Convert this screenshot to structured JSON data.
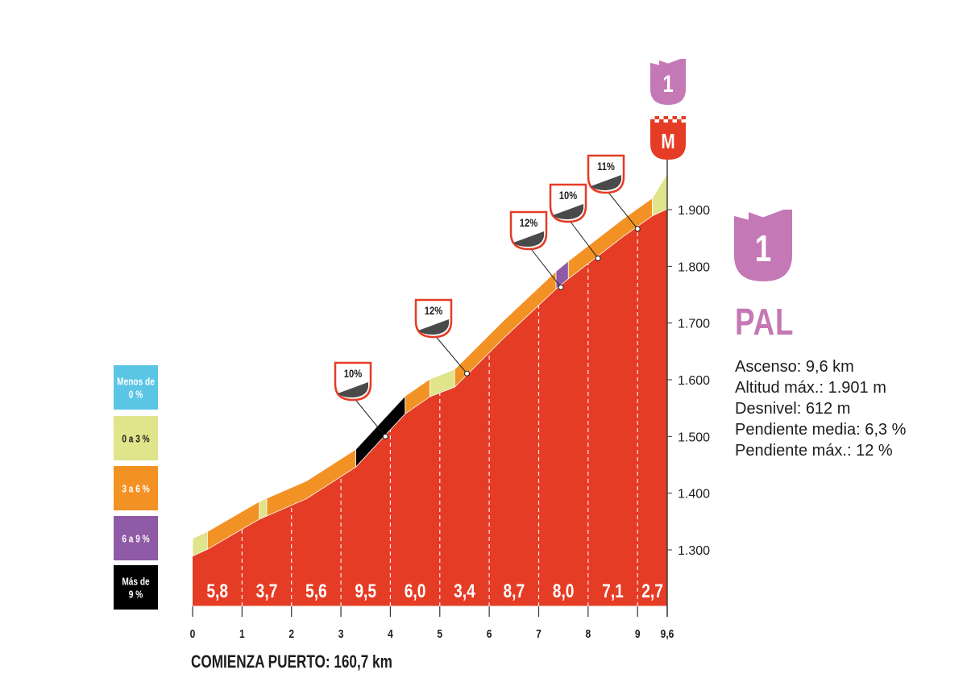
{
  "chart_data": {
    "type": "area",
    "title": "PAL",
    "category_label": "1",
    "summit_marker": "M",
    "start_note": "COMIENZA PUERTO: 160,7 km",
    "x_ticks": [
      "0",
      "1",
      "2",
      "3",
      "4",
      "5",
      "6",
      "7",
      "8",
      "9",
      "9,6"
    ],
    "x_range": [
      0,
      9.6
    ],
    "y_ticks": [
      "1.300",
      "1.400",
      "1.500",
      "1.600",
      "1.700",
      "1.800",
      "1.900"
    ],
    "y_range": [
      1230,
      1930
    ],
    "profile": [
      {
        "km": 0.0,
        "alt": 1289
      },
      {
        "km": 0.3,
        "alt": 1301
      },
      {
        "km": 1.35,
        "alt": 1354
      },
      {
        "km": 2.3,
        "alt": 1390
      },
      {
        "km": 3.3,
        "alt": 1446
      },
      {
        "km": 4.3,
        "alt": 1540
      },
      {
        "km": 4.8,
        "alt": 1570
      },
      {
        "km": 5.3,
        "alt": 1587
      },
      {
        "km": 6.3,
        "alt": 1674
      },
      {
        "km": 7.35,
        "alt": 1760
      },
      {
        "km": 7.6,
        "alt": 1778
      },
      {
        "km": 8.7,
        "alt": 1852
      },
      {
        "km": 9.3,
        "alt": 1889
      },
      {
        "km": 9.6,
        "alt": 1901
      }
    ],
    "segments": [
      {
        "from": 0.0,
        "to": 0.3,
        "class": "flat"
      },
      {
        "from": 0.3,
        "to": 1.35,
        "class": "medium"
      },
      {
        "from": 1.35,
        "to": 1.5,
        "class": "flat"
      },
      {
        "from": 1.5,
        "to": 3.3,
        "class": "medium"
      },
      {
        "from": 3.3,
        "to": 4.3,
        "class": "steep"
      },
      {
        "from": 4.3,
        "to": 4.8,
        "class": "medium"
      },
      {
        "from": 4.8,
        "to": 5.3,
        "class": "flat"
      },
      {
        "from": 5.3,
        "to": 7.35,
        "class": "medium"
      },
      {
        "from": 7.35,
        "to": 7.6,
        "class": "hard"
      },
      {
        "from": 7.6,
        "to": 9.3,
        "class": "medium"
      },
      {
        "from": 9.3,
        "to": 9.6,
        "class": "flat"
      }
    ],
    "km_gradients": [
      "5,8",
      "3,7",
      "5,6",
      "9,5",
      "6,0",
      "3,4",
      "8,7",
      "8,0",
      "7,1",
      "2,7"
    ],
    "gradient_callouts": [
      {
        "label": "10%",
        "km": 3.9,
        "alt": 1500
      },
      {
        "label": "12%",
        "km": 5.55,
        "alt": 1611
      },
      {
        "label": "12%",
        "km": 7.45,
        "alt": 1763
      },
      {
        "label": "10%",
        "km": 8.2,
        "alt": 1814
      },
      {
        "label": "11%",
        "km": 9.0,
        "alt": 1866
      }
    ],
    "legend": [
      {
        "label": "Menos de 0 %",
        "lines": [
          "Menos de",
          "0 %"
        ],
        "class": "down"
      },
      {
        "label": "0 a 3 %",
        "lines": [
          "0 a 3 %"
        ],
        "class": "flat"
      },
      {
        "label": "3 a 6 %",
        "lines": [
          "3 a 6 %"
        ],
        "class": "medium"
      },
      {
        "label": "6 a 9 %",
        "lines": [
          "6 a 9 %"
        ],
        "class": "hard"
      },
      {
        "label": "Más de 9 %",
        "lines": [
          "Más de",
          "9 %"
        ],
        "class": "steep"
      }
    ]
  },
  "stats": {
    "ascent": "Ascenso: 9,6 km",
    "max_altitude": "Altitud máx.: 1.901 m",
    "elevation_gain": "Desnivel: 612 m",
    "avg_gradient": "Pendiente media: 6,3 %",
    "max_gradient": "Pendiente máx.: 12 %"
  },
  "colors": {
    "profile_red": "#e53c25",
    "down": "#5bc5e6",
    "flat": "#e0e48a",
    "medium": "#f39224",
    "hard": "#8f5aa6",
    "steep": "#000000",
    "category_pink": "#c478b5",
    "text_dark": "#1d1d1b",
    "axis_gray": "#333333",
    "badge_dark": "#4a4a4a"
  }
}
